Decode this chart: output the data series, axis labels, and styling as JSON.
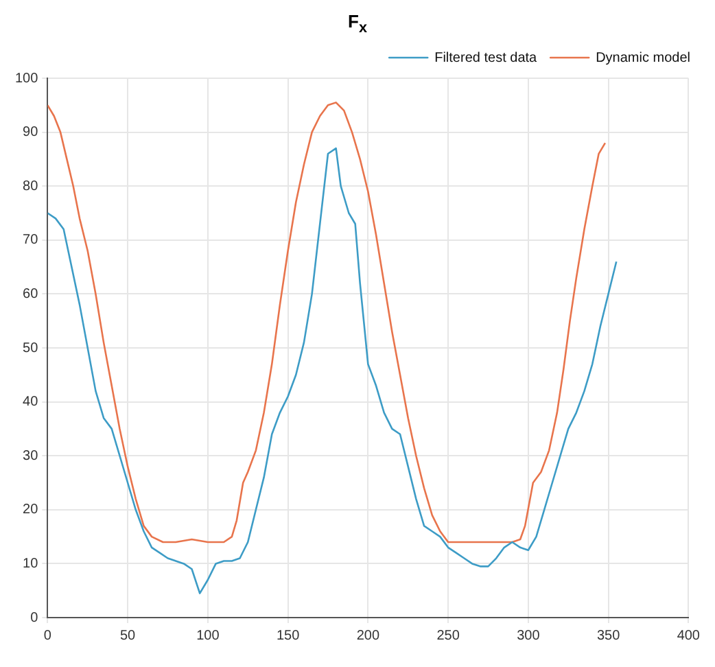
{
  "chart_data": {
    "type": "line",
    "title": "F$_{x}$",
    "xlim": [
      0,
      400
    ],
    "xticks": [
      0,
      50,
      100,
      150,
      200,
      250,
      300,
      350,
      400
    ],
    "ylim": [
      0,
      100
    ],
    "yticks": [
      0,
      10,
      20,
      30,
      40,
      50,
      60,
      70,
      80,
      90,
      100
    ],
    "grid": true,
    "legend": "top right",
    "marker": "none",
    "line_style": "solid",
    "series": [
      {
        "name": "Filtered test data",
        "color": "#3d9cc6",
        "x": [
          0,
          5,
          10,
          15,
          20,
          25,
          30,
          35,
          40,
          45,
          50,
          55,
          60,
          65,
          70,
          75,
          80,
          85,
          90,
          95,
          100,
          105,
          110,
          115,
          120,
          125,
          130,
          135,
          140,
          145,
          150,
          155,
          160,
          165,
          170,
          175,
          180,
          183,
          188,
          192,
          195,
          200,
          205,
          210,
          215,
          220,
          225,
          230,
          235,
          240,
          245,
          250,
          255,
          260,
          265,
          270,
          275,
          280,
          285,
          290,
          295,
          300,
          305,
          310,
          315,
          320,
          325,
          330,
          335,
          340,
          345,
          350,
          355
        ],
        "values": [
          75,
          74,
          72,
          65,
          58,
          50,
          42,
          37,
          35,
          30,
          25,
          20,
          16,
          13,
          12,
          11,
          10.5,
          10,
          9,
          4.5,
          7,
          10,
          10.5,
          10.5,
          11,
          14,
          20,
          26,
          34,
          38,
          41,
          45,
          51,
          60,
          73,
          86,
          87,
          80,
          75,
          73,
          62,
          47,
          43,
          38,
          35,
          34,
          28,
          22,
          17,
          16,
          15,
          13,
          12,
          11,
          10,
          9.5,
          9.5,
          11,
          13,
          14,
          13,
          12.5,
          15,
          20,
          25,
          30,
          35,
          38,
          42,
          47,
          54,
          60,
          66
        ]
      },
      {
        "name": "Dynamic model",
        "color": "#e8744c",
        "x": [
          0,
          4,
          8,
          12,
          16,
          20,
          25,
          30,
          35,
          40,
          45,
          50,
          55,
          60,
          65,
          72,
          80,
          90,
          100,
          110,
          115,
          118,
          122,
          125,
          130,
          135,
          140,
          145,
          150,
          155,
          160,
          165,
          170,
          175,
          180,
          185,
          190,
          195,
          200,
          205,
          210,
          215,
          220,
          225,
          230,
          235,
          240,
          245,
          250,
          260,
          270,
          280,
          290,
          295,
          298,
          303,
          308,
          313,
          318,
          322,
          326,
          330,
          335,
          340,
          344,
          348
        ],
        "values": [
          95,
          93,
          90,
          85,
          80,
          74,
          68,
          60,
          51,
          43,
          35,
          28,
          22,
          17,
          15,
          14,
          14,
          14.5,
          14,
          14,
          15,
          18,
          25,
          27,
          31,
          38,
          47,
          58,
          68,
          77,
          84,
          90,
          93,
          95,
          95.5,
          94,
          90,
          85,
          79,
          71,
          62,
          53,
          45,
          37,
          30,
          24,
          19,
          16,
          14,
          14,
          14,
          14,
          14,
          14.5,
          17,
          25,
          27,
          31,
          38,
          46,
          55,
          63,
          72,
          80,
          86,
          88
        ]
      }
    ]
  }
}
